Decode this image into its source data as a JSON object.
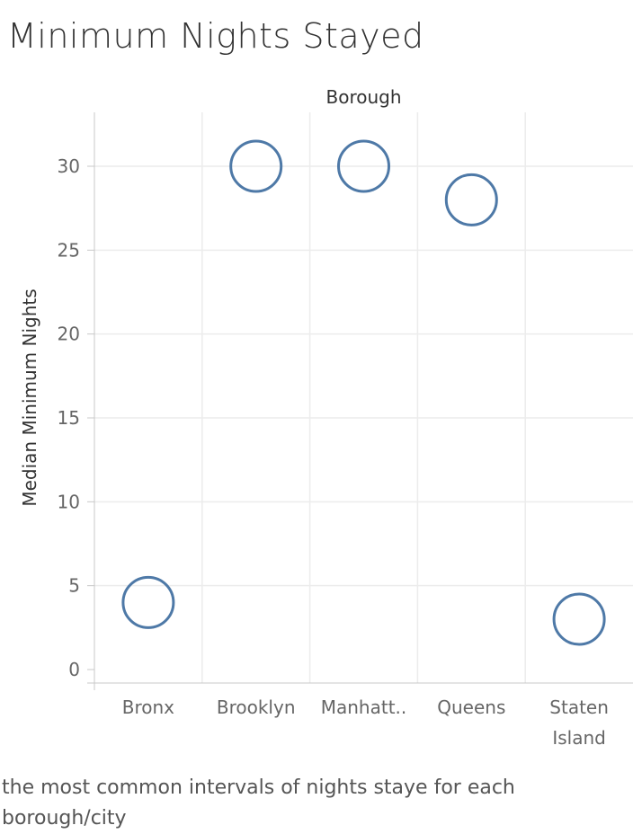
{
  "page": {
    "caption": "the most common intervals of nights staye for each borough/city"
  },
  "chart_data": {
    "type": "scatter",
    "title": "Minimum Nights Stayed",
    "column_header": "Borough",
    "ylabel": "Median Minimum Nights",
    "categories": [
      [
        "Bronx"
      ],
      [
        "Brooklyn"
      ],
      [
        "Manhatt.."
      ],
      [
        "Queens"
      ],
      [
        "Staten",
        "Island"
      ]
    ],
    "values": [
      4,
      30,
      30,
      28,
      3
    ],
    "ylim": [
      0,
      33
    ],
    "yticks": [
      0,
      5,
      10,
      15,
      20,
      25,
      30
    ],
    "grid": true,
    "marker": "open-circle",
    "colors": {
      "marker": "#4e79a7",
      "grid": "#ececec",
      "axis": "#c8c8c8",
      "tick_label": "#666666",
      "axis_title": "#333333"
    }
  }
}
